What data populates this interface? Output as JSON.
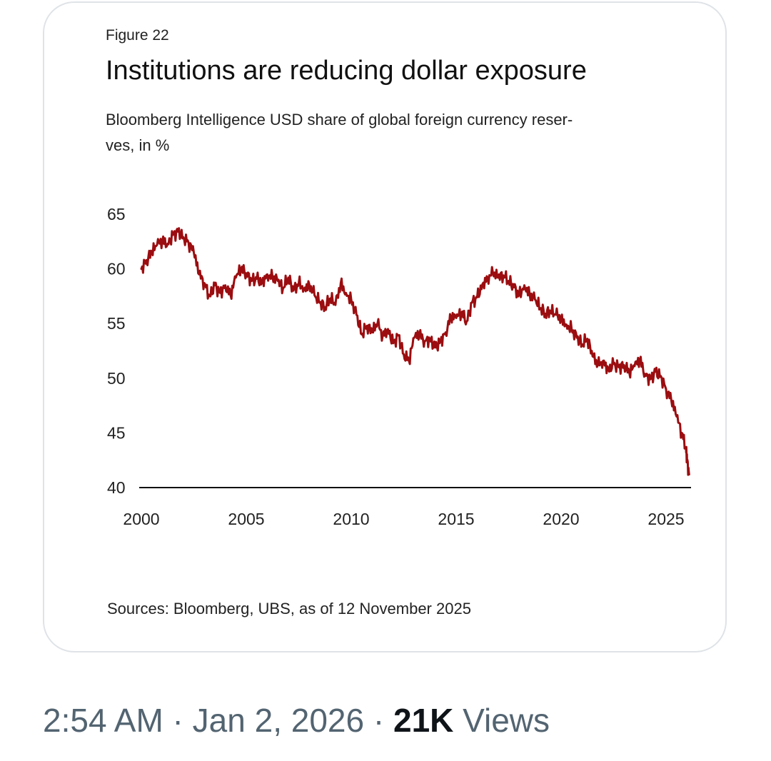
{
  "figure": {
    "label": "Figure 22",
    "title": "Institutions are reducing dollar exposure",
    "subtitle_line1": "Bloomberg Intelligence USD share of global foreign currency reser-",
    "subtitle_line2": "ves, in %",
    "source": "Sources: Bloomberg, UBS, as of 12 November 2025"
  },
  "chart_data": {
    "type": "line",
    "title": "Institutions are reducing dollar exposure",
    "subtitle": "Bloomberg Intelligence USD share of global foreign currency reserves, in %",
    "xlabel": "",
    "ylabel": "",
    "xlim": [
      2000,
      2026.3
    ],
    "ylim": [
      40,
      65
    ],
    "x_ticks": [
      2000,
      2005,
      2010,
      2015,
      2020,
      2025
    ],
    "y_ticks": [
      40,
      45,
      50,
      55,
      60,
      65
    ],
    "grid": false,
    "line_color": "#9b0d10",
    "series": [
      {
        "name": "USD share of global FX reserves (%)",
        "points": [
          [
            2000.0,
            60.0
          ],
          [
            2000.25,
            60.8
          ],
          [
            2000.5,
            61.5
          ],
          [
            2000.75,
            62.2
          ],
          [
            2001.0,
            62.6
          ],
          [
            2001.25,
            62.3
          ],
          [
            2001.5,
            63.1
          ],
          [
            2001.75,
            63.4
          ],
          [
            2002.0,
            62.9
          ],
          [
            2002.25,
            62.4
          ],
          [
            2002.5,
            61.5
          ],
          [
            2002.75,
            59.5
          ],
          [
            2003.0,
            58.7
          ],
          [
            2003.25,
            57.5
          ],
          [
            2003.5,
            58.5
          ],
          [
            2003.75,
            57.8
          ],
          [
            2004.0,
            58.5
          ],
          [
            2004.25,
            57.6
          ],
          [
            2004.5,
            59.2
          ],
          [
            2004.75,
            60.0
          ],
          [
            2005.0,
            59.6
          ],
          [
            2005.25,
            58.9
          ],
          [
            2005.5,
            59.1
          ],
          [
            2005.75,
            58.8
          ],
          [
            2006.0,
            59.5
          ],
          [
            2006.25,
            59.2
          ],
          [
            2006.5,
            58.9
          ],
          [
            2006.75,
            58.2
          ],
          [
            2007.0,
            59.2
          ],
          [
            2007.25,
            58.0
          ],
          [
            2007.5,
            58.7
          ],
          [
            2007.75,
            58.2
          ],
          [
            2008.0,
            58.6
          ],
          [
            2008.25,
            57.6
          ],
          [
            2008.5,
            56.9
          ],
          [
            2008.75,
            56.5
          ],
          [
            2009.0,
            57.3
          ],
          [
            2009.25,
            56.7
          ],
          [
            2009.5,
            58.7
          ],
          [
            2009.75,
            57.8
          ],
          [
            2010.0,
            57.2
          ],
          [
            2010.25,
            55.8
          ],
          [
            2010.5,
            54.0
          ],
          [
            2010.75,
            54.8
          ],
          [
            2011.0,
            54.2
          ],
          [
            2011.25,
            55.0
          ],
          [
            2011.5,
            53.9
          ],
          [
            2011.75,
            54.5
          ],
          [
            2012.0,
            53.2
          ],
          [
            2012.25,
            53.9
          ],
          [
            2012.5,
            52.2
          ],
          [
            2012.75,
            51.6
          ],
          [
            2013.0,
            53.7
          ],
          [
            2013.25,
            54.0
          ],
          [
            2013.5,
            53.4
          ],
          [
            2013.75,
            53.6
          ],
          [
            2014.0,
            52.8
          ],
          [
            2014.25,
            53.4
          ],
          [
            2014.5,
            54.2
          ],
          [
            2014.75,
            55.6
          ],
          [
            2015.0,
            55.5
          ],
          [
            2015.25,
            56.0
          ],
          [
            2015.5,
            55.2
          ],
          [
            2015.75,
            56.9
          ],
          [
            2016.0,
            57.4
          ],
          [
            2016.25,
            58.6
          ],
          [
            2016.5,
            59.2
          ],
          [
            2016.75,
            59.6
          ],
          [
            2017.0,
            59.2
          ],
          [
            2017.25,
            59.4
          ],
          [
            2017.5,
            58.9
          ],
          [
            2017.75,
            58.3
          ],
          [
            2018.0,
            57.6
          ],
          [
            2018.25,
            58.5
          ],
          [
            2018.5,
            57.7
          ],
          [
            2018.75,
            57.2
          ],
          [
            2019.0,
            56.4
          ],
          [
            2019.25,
            55.9
          ],
          [
            2019.5,
            56.1
          ],
          [
            2019.75,
            55.8
          ],
          [
            2020.0,
            55.5
          ],
          [
            2020.25,
            54.9
          ],
          [
            2020.5,
            54.5
          ],
          [
            2020.75,
            53.7
          ],
          [
            2021.0,
            53.1
          ],
          [
            2021.25,
            53.6
          ],
          [
            2021.5,
            52.0
          ],
          [
            2021.75,
            51.2
          ],
          [
            2022.0,
            51.6
          ],
          [
            2022.25,
            50.8
          ],
          [
            2022.5,
            51.3
          ],
          [
            2022.75,
            51.0
          ],
          [
            2023.0,
            51.2
          ],
          [
            2023.25,
            50.5
          ],
          [
            2023.5,
            51.1
          ],
          [
            2023.75,
            51.7
          ],
          [
            2024.0,
            50.4
          ],
          [
            2024.25,
            49.9
          ],
          [
            2024.5,
            50.6
          ],
          [
            2024.75,
            50.2
          ],
          [
            2025.0,
            49.0
          ],
          [
            2025.25,
            48.0
          ],
          [
            2025.5,
            46.5
          ],
          [
            2025.75,
            45.0
          ],
          [
            2025.95,
            43.6
          ],
          [
            2026.0,
            42.5
          ],
          [
            2026.1,
            41.2
          ]
        ]
      }
    ]
  },
  "tweet": {
    "time": "2:54 AM",
    "separator1": " · ",
    "date": "Jan 2, 2026",
    "separator2": " · ",
    "views_count": "21K",
    "views_label": " Views"
  }
}
